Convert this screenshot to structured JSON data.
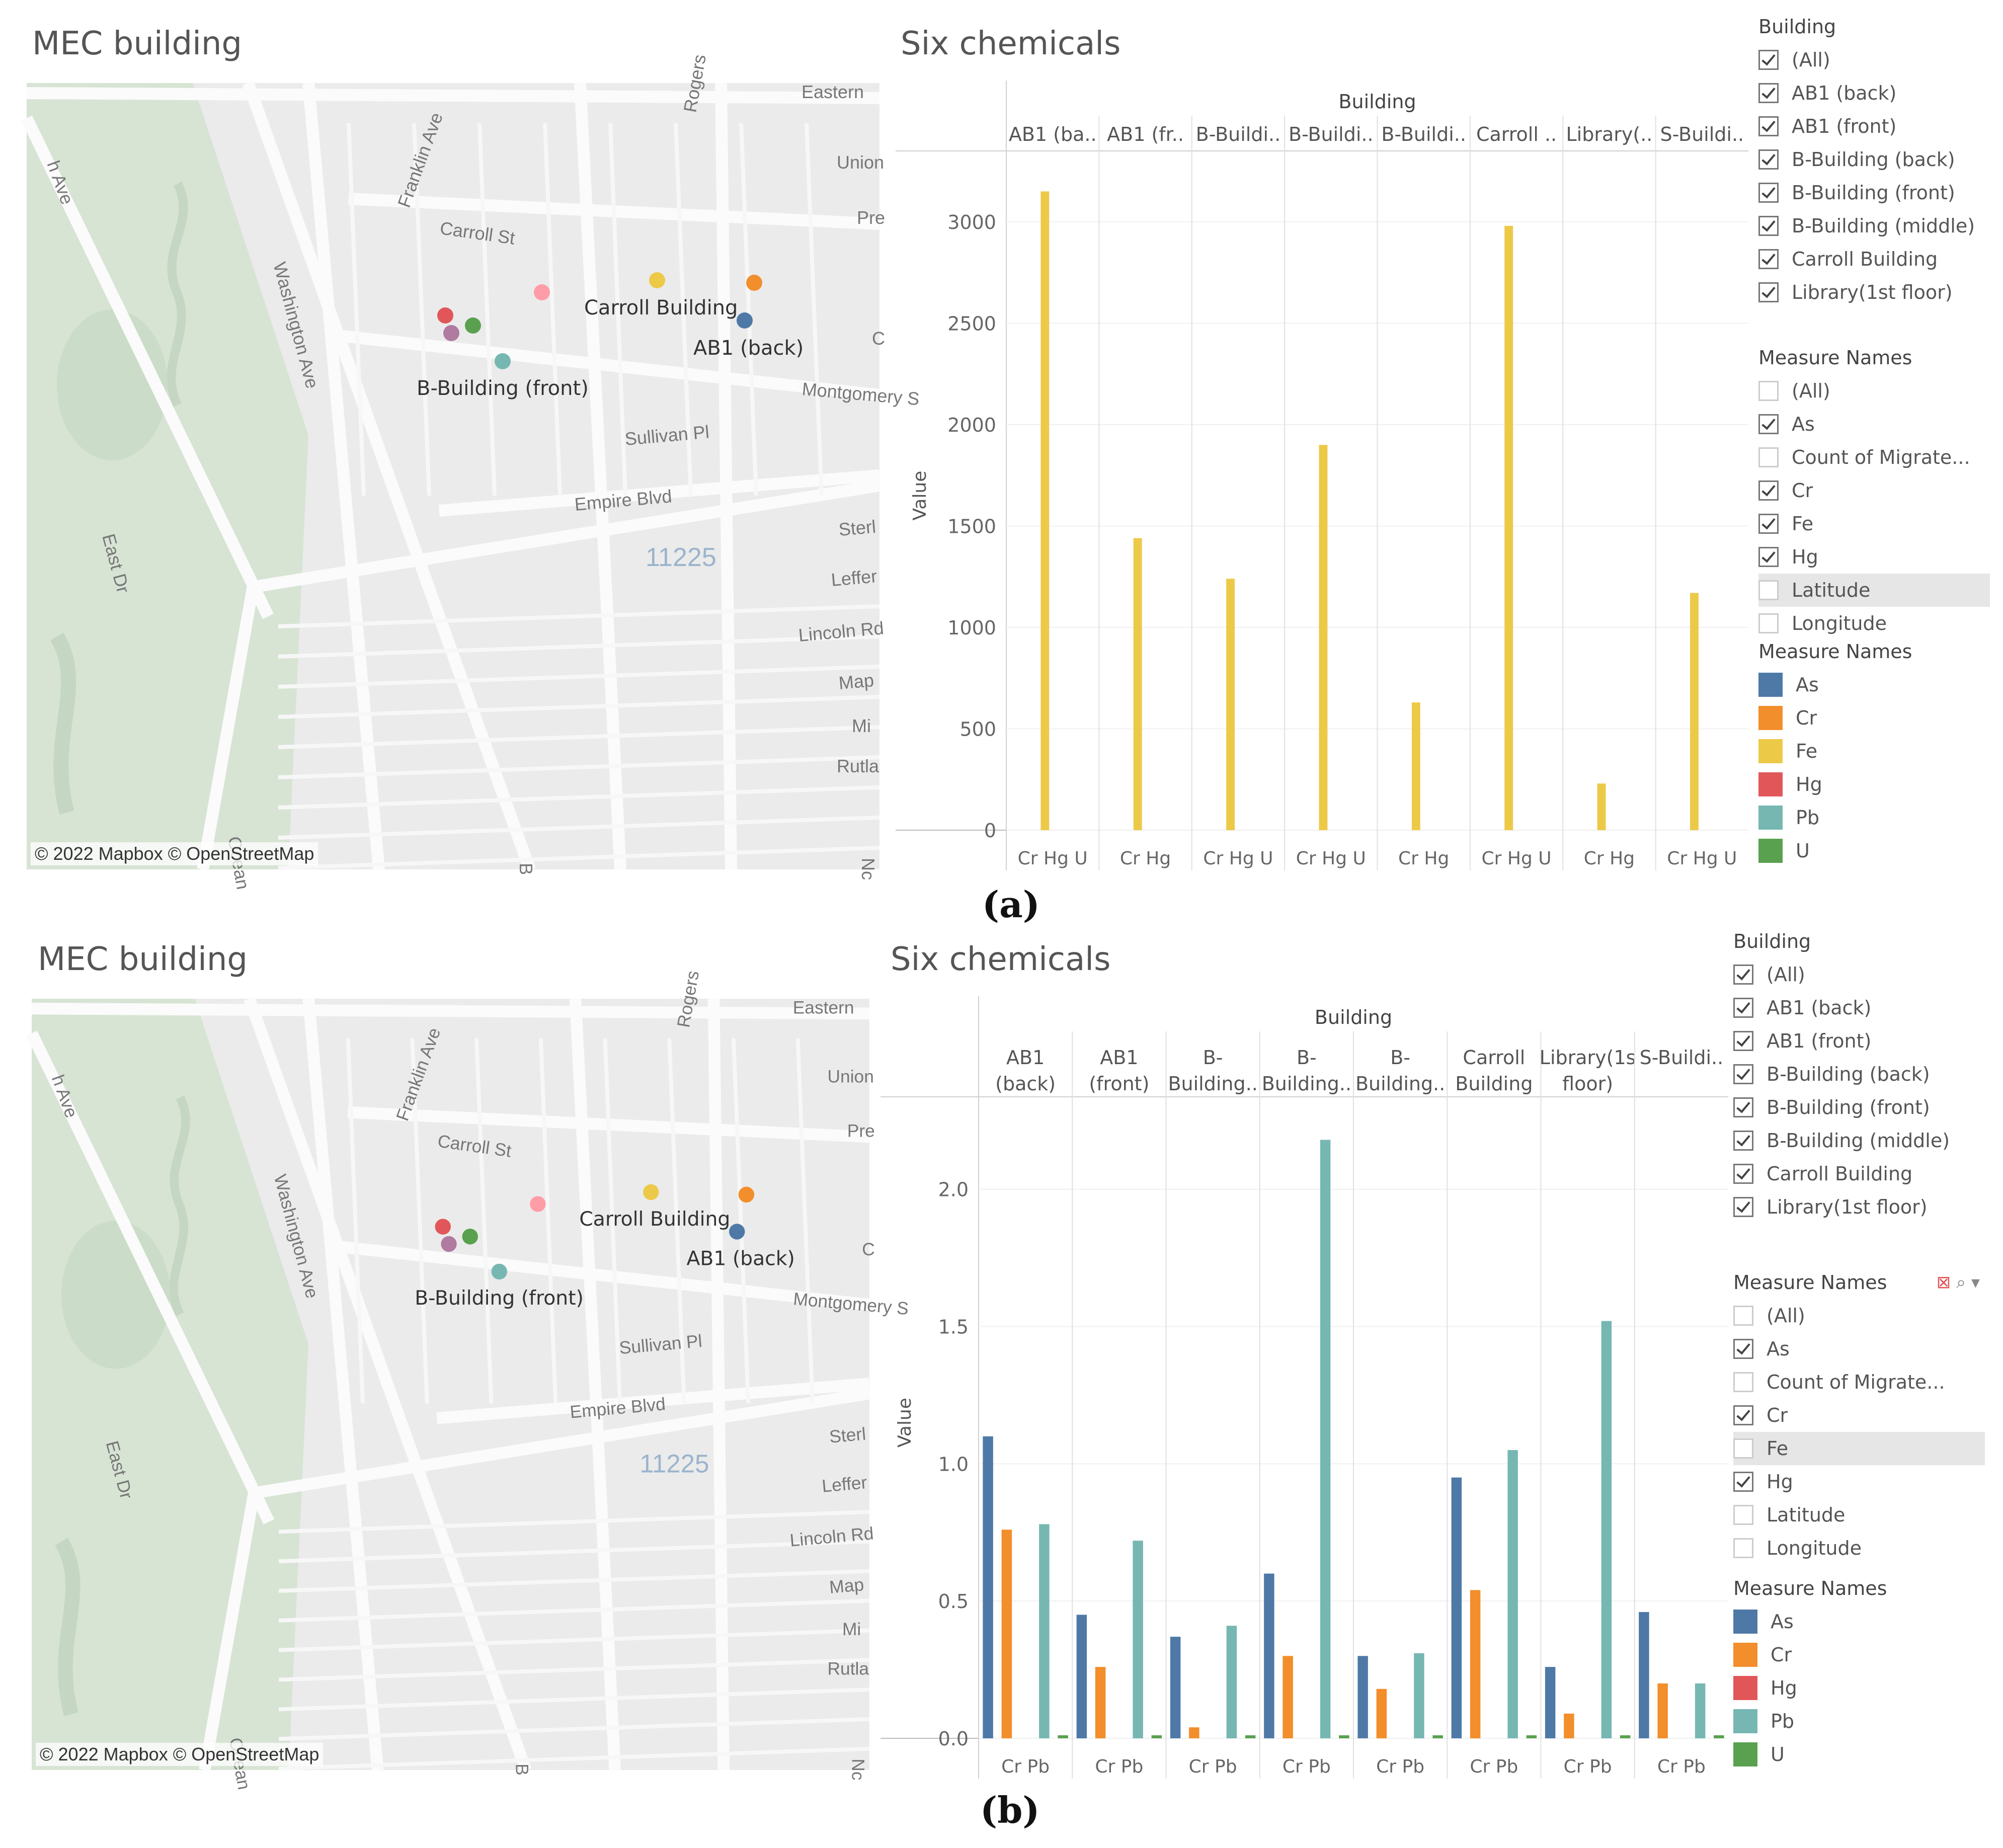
{
  "colors": {
    "As": "#4e79a7",
    "Cr": "#f28e2b",
    "Fe": "#edc948",
    "Hg": "#e15759",
    "Pb": "#76b7b2",
    "U": "#59a14f"
  },
  "map_labels": {
    "streets": [
      "Eastern",
      "Rogers",
      "Union",
      "Pre",
      "Franklin Ave",
      "Washington Ave",
      "Carroll St",
      "Montgomery S",
      "Sullivan Pl",
      "Empire Blvd",
      "Sterl",
      "Leffer",
      "Lincoln Rd",
      "Map",
      "Mi",
      "Rutla",
      "East Dr",
      "Ocean",
      "h Ave",
      "C",
      "B",
      "Nc"
    ],
    "zip": "11225",
    "buildings": [
      "Carroll Building",
      "AB1 (back)",
      "B-Building (front)"
    ],
    "attribution": "© 2022 Mapbox  © OpenStreetMap"
  },
  "panel_a": {
    "map_title": "MEC building",
    "chart_title": "Six chemicals",
    "building_header": "Building",
    "columns": [
      "AB1 (ba..",
      "AB1 (fr..",
      "B-Buildi..",
      "B-Buildi..",
      "B-Buildi..",
      "Carroll ..",
      "Library(..",
      "S-Buildi.."
    ],
    "ylabel": "Value",
    "panel_label": "(a)",
    "filter_building": {
      "title": "Building",
      "items": [
        "(All)",
        "AB1 (back)",
        "AB1 (front)",
        "B-Building (back)",
        "B-Building (front)",
        "B-Building (middle)",
        "Carroll Building",
        "Library(1st floor)"
      ]
    },
    "filter_measures": {
      "title": "Measure Names",
      "items": [
        {
          "label": "(All)",
          "checked": false
        },
        {
          "label": "As",
          "checked": true
        },
        {
          "label": "Count of Migrate...",
          "checked": false
        },
        {
          "label": "Cr",
          "checked": true
        },
        {
          "label": "Fe",
          "checked": true
        },
        {
          "label": "Hg",
          "checked": true
        },
        {
          "label": "Latitude",
          "checked": false
        },
        {
          "label": "Longitude",
          "checked": false
        }
      ]
    },
    "color_legend": {
      "title": "Measure Names",
      "items": [
        "As",
        "Cr",
        "Fe",
        "Hg",
        "Pb",
        "U"
      ]
    }
  },
  "panel_b": {
    "map_title": "MEC building",
    "chart_title": "Six chemicals",
    "building_header": "Building",
    "columns": [
      [
        "AB1",
        "(back)"
      ],
      [
        "AB1",
        "(front)"
      ],
      [
        "B-",
        "Building.."
      ],
      [
        "B-",
        "Building.."
      ],
      [
        "B-",
        "Building.."
      ],
      [
        "Carroll",
        "Building"
      ],
      [
        "Library(1s",
        "floor)"
      ],
      [
        "S-Buildi..",
        ""
      ]
    ],
    "ylabel": "Value",
    "panel_label": "(b)",
    "filter_building": {
      "title": "Building",
      "items": [
        "(All)",
        "AB1 (back)",
        "AB1 (front)",
        "B-Building (back)",
        "B-Building (front)",
        "B-Building (middle)",
        "Carroll Building",
        "Library(1st floor)"
      ]
    },
    "filter_measures": {
      "title": "Measure Names",
      "items": [
        {
          "label": "(All)",
          "checked": false
        },
        {
          "label": "As",
          "checked": true
        },
        {
          "label": "Count of Migrate...",
          "checked": false
        },
        {
          "label": "Cr",
          "checked": true
        },
        {
          "label": "Fe",
          "checked": false
        },
        {
          "label": "Hg",
          "checked": true
        },
        {
          "label": "Latitude",
          "checked": false
        },
        {
          "label": "Longitude",
          "checked": false
        }
      ]
    },
    "color_legend": {
      "title": "Measure Names",
      "items": [
        "As",
        "Cr",
        "Hg",
        "Pb",
        "U"
      ]
    }
  },
  "chart_data": [
    {
      "type": "bar",
      "title": "Six chemicals",
      "group_label": "Building",
      "categories": [
        "AB1 (back)",
        "AB1 (front)",
        "B-Building (back)",
        "B-Building (front)",
        "B-Building (middle)",
        "Carroll Building",
        "Library(1st floor)",
        "S-Building"
      ],
      "ylabel": "Value",
      "ylim": [
        0,
        3300
      ],
      "yticks": [
        0,
        500,
        1000,
        1500,
        2000,
        2500,
        3000
      ],
      "series": [
        {
          "name": "Fe",
          "values": [
            3150,
            1440,
            1240,
            1900,
            630,
            2980,
            230,
            1170
          ]
        }
      ],
      "x_tick_labels": [
        [
          "Cr",
          "Hg",
          "U"
        ],
        [
          "Cr",
          "Hg"
        ],
        [
          "Cr",
          "Hg",
          "U"
        ],
        [
          "Cr",
          "Hg",
          "U"
        ],
        [
          "Cr",
          "Hg"
        ],
        [
          "Cr",
          "Hg",
          "U"
        ],
        [
          "Cr",
          "Hg"
        ],
        [
          "Cr",
          "Hg",
          "U"
        ]
      ],
      "legend": "right"
    },
    {
      "type": "bar",
      "title": "Six chemicals",
      "group_label": "Building",
      "categories": [
        "AB1 (back)",
        "AB1 (front)",
        "B-Building (back)",
        "B-Building (front)",
        "B-Building (middle)",
        "Carroll Building",
        "Library(1st floor)",
        "S-Building"
      ],
      "ylabel": "Value",
      "ylim": [
        0,
        2.3
      ],
      "yticks": [
        "0.0",
        "0.5",
        "1.0",
        "1.5",
        "2.0"
      ],
      "series": [
        {
          "name": "As",
          "values": [
            1.1,
            0.45,
            0.37,
            0.6,
            0.3,
            0.95,
            0.26,
            0.46
          ]
        },
        {
          "name": "Cr",
          "values": [
            0.76,
            0.26,
            0.04,
            0.3,
            0.18,
            0.54,
            0.09,
            0.2
          ]
        },
        {
          "name": "Hg",
          "values": [
            0,
            0,
            0,
            0,
            0,
            0,
            0,
            0
          ]
        },
        {
          "name": "Pb",
          "values": [
            0.78,
            0.72,
            0.41,
            2.18,
            0.31,
            1.05,
            1.52,
            0.2
          ]
        },
        {
          "name": "U",
          "values": [
            0.01,
            0.01,
            0.01,
            0.01,
            0.01,
            0.01,
            0.01,
            0.01
          ]
        }
      ],
      "x_tick_labels": [
        [
          "Cr",
          "Pb"
        ],
        [
          "Cr",
          "Pb"
        ],
        [
          "Cr",
          "Pb"
        ],
        [
          "Cr",
          "Pb"
        ],
        [
          "Cr",
          "Pb"
        ],
        [
          "Cr",
          "Pb"
        ],
        [
          "Cr",
          "Pb"
        ],
        [
          "Cr",
          "Pb"
        ]
      ],
      "legend": "right"
    }
  ]
}
